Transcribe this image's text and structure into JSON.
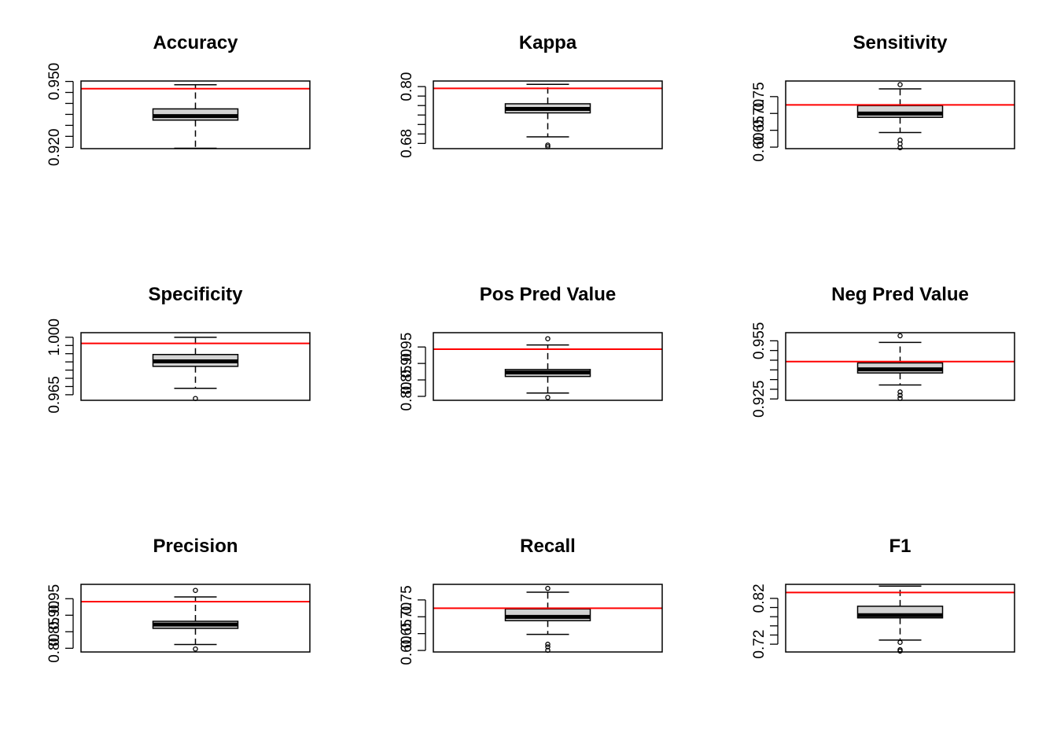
{
  "colors": {
    "box_fill": "#d3d3d3",
    "reference_line": "#ff0000",
    "ink": "#000000",
    "background": "#ffffff"
  },
  "chart_data": [
    {
      "type": "box",
      "title": "Accuracy",
      "ylim": [
        0.9194,
        0.9502
      ],
      "ticks": [
        0.92,
        0.925,
        0.93,
        0.935,
        0.94,
        0.945,
        0.95
      ],
      "tick_labels": [
        "0.920",
        "",
        "",
        "",
        "",
        "",
        "0.950"
      ],
      "box": {
        "whisker_low": 0.9196,
        "q1": 0.9324,
        "median": 0.9342,
        "q3": 0.9375,
        "whisker_high": 0.9485
      },
      "outliers": [],
      "reference_value": 0.9467
    },
    {
      "type": "box",
      "title": "Kappa",
      "ylim": [
        0.669,
        0.8118
      ],
      "ticks": [
        0.68,
        0.7,
        0.72,
        0.74,
        0.76,
        0.78,
        0.8
      ],
      "tick_labels": [
        "0.68",
        "",
        "",
        "",
        "",
        "",
        "0.80"
      ],
      "box": {
        "whisker_low": 0.694,
        "q1": 0.7445,
        "median": 0.7528,
        "q3": 0.7637,
        "whisker_high": 0.8048
      },
      "outliers": [
        0.6731,
        0.6765
      ],
      "reference_value": 0.7963
    },
    {
      "type": "box",
      "title": "Sensitivity",
      "ylim": [
        0.5955,
        0.7963
      ],
      "ticks": [
        0.6,
        0.65,
        0.7,
        0.75
      ],
      "tick_labels": [
        "0.60",
        "0.65",
        "0.70",
        "0.75"
      ],
      "box": {
        "whisker_low": 0.6433,
        "q1": 0.6884,
        "median": 0.6997,
        "q3": 0.7232,
        "whisker_high": 0.7729
      },
      "outliers": [
        0.5983,
        0.6096,
        0.6208,
        0.7855
      ],
      "reference_value": 0.7254
    },
    {
      "type": "box",
      "title": "Specificity",
      "ylim": [
        0.9616,
        1.0028
      ],
      "ticks": [
        0.965,
        0.97,
        0.975,
        0.98,
        0.985,
        0.99,
        0.995,
        1.0
      ],
      "tick_labels": [
        "0.965",
        "",
        "",
        "",
        "",
        "",
        "",
        "1.000"
      ],
      "box": {
        "whisker_low": 0.9689,
        "q1": 0.9823,
        "median": 0.9853,
        "q3": 0.9895,
        "whisker_high": 1.0
      },
      "outliers": [
        0.9627
      ],
      "reference_value": 0.9963
    },
    {
      "type": "box",
      "title": "Pos Pred Value",
      "ylim": [
        0.788,
        0.9935
      ],
      "ticks": [
        0.8,
        0.85,
        0.9,
        0.95
      ],
      "tick_labels": [
        "0.80",
        "0.85",
        "0.90",
        "0.95"
      ],
      "box": {
        "whisker_low": 0.8102,
        "q1": 0.8605,
        "median": 0.8724,
        "q3": 0.8816,
        "whisker_high": 0.9563
      },
      "outliers": [
        0.7968,
        0.9751
      ],
      "reference_value": 0.9433
    },
    {
      "type": "box",
      "title": "Neg Pred Value",
      "ylim": [
        0.9243,
        0.9592
      ],
      "ticks": [
        0.925,
        0.93,
        0.935,
        0.94,
        0.945,
        0.95,
        0.955
      ],
      "tick_labels": [
        "0.925",
        "",
        "",
        "",
        "",
        "",
        "0.955"
      ],
      "box": {
        "whisker_low": 0.9322,
        "q1": 0.9384,
        "median": 0.9403,
        "q3": 0.9436,
        "whisker_high": 0.9542
      },
      "outliers": [
        0.9253,
        0.9269,
        0.9286,
        0.9576
      ],
      "reference_value": 0.9443
    },
    {
      "type": "box",
      "title": "Precision",
      "ylim": [
        0.7888,
        0.9935
      ],
      "ticks": [
        0.8,
        0.85,
        0.9,
        0.95
      ],
      "tick_labels": [
        "0.80",
        "0.85",
        "0.90",
        "0.95"
      ],
      "box": {
        "whisker_low": 0.8114,
        "q1": 0.8603,
        "median": 0.8718,
        "q3": 0.8817,
        "whisker_high": 0.9554
      },
      "outliers": [
        0.7978,
        0.9751
      ],
      "reference_value": 0.9412
    },
    {
      "type": "box",
      "title": "Recall",
      "ylim": [
        0.5955,
        0.7963
      ],
      "ticks": [
        0.6,
        0.65,
        0.7,
        0.75
      ],
      "tick_labels": [
        "0.60",
        "0.65",
        "0.70",
        "0.75"
      ],
      "box": {
        "whisker_low": 0.6478,
        "q1": 0.6884,
        "median": 0.6997,
        "q3": 0.7232,
        "whisker_high": 0.7729
      },
      "outliers": [
        0.6005,
        0.6107,
        0.6185,
        0.7843
      ],
      "reference_value": 0.7254
    },
    {
      "type": "box",
      "title": "F1",
      "ylim": [
        0.703,
        0.8506
      ],
      "ticks": [
        0.72,
        0.74,
        0.76,
        0.78,
        0.8,
        0.82
      ],
      "tick_labels": [
        "0.72",
        "",
        "",
        "",
        "",
        "0.82"
      ],
      "box": {
        "whisker_low": 0.7289,
        "q1": 0.7774,
        "median": 0.7832,
        "q3": 0.8028,
        "whisker_high": 0.8468
      },
      "outliers": [
        0.705,
        0.7079,
        0.724
      ],
      "reference_value": 0.8329
    }
  ]
}
